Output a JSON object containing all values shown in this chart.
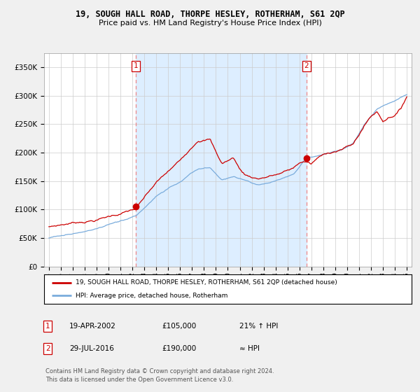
{
  "title": "19, SOUGH HALL ROAD, THORPE HESLEY, ROTHERHAM, S61 2QP",
  "subtitle": "Price paid vs. HM Land Registry's House Price Index (HPI)",
  "legend_line1": "19, SOUGH HALL ROAD, THORPE HESLEY, ROTHERHAM, S61 2QP (detached house)",
  "legend_line2": "HPI: Average price, detached house, Rotherham",
  "sale1_label": "1",
  "sale1_date": "19-APR-2002",
  "sale1_price": "£105,000",
  "sale1_hpi": "21% ↑ HPI",
  "sale2_label": "2",
  "sale2_date": "29-JUL-2016",
  "sale2_price": "£190,000",
  "sale2_hpi": "≈ HPI",
  "footer": "Contains HM Land Registry data © Crown copyright and database right 2024.\nThis data is licensed under the Open Government Licence v3.0.",
  "sale1_x": 2002.3,
  "sale1_y": 105000,
  "sale2_x": 2016.58,
  "sale2_y": 190000,
  "vline1_x": 2002.3,
  "vline2_x": 2016.58,
  "red_color": "#cc0000",
  "blue_color": "#7aacdc",
  "shade_color": "#ddeeff",
  "vline_color": "#ee8888",
  "background_color": "#f0f0f0",
  "plot_bg_color": "#ffffff",
  "ylim": [
    0,
    375000
  ],
  "xlim": [
    1994.6,
    2025.4
  ],
  "yticks": [
    0,
    50000,
    100000,
    150000,
    200000,
    250000,
    300000,
    350000
  ],
  "ytick_labels": [
    "£0",
    "£50K",
    "£100K",
    "£150K",
    "£200K",
    "£250K",
    "£300K",
    "£350K"
  ]
}
